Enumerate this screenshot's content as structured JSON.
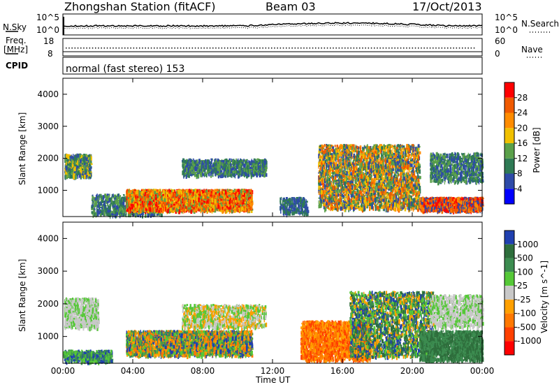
{
  "header": {
    "station": "Zhongshan Station (fitACF)",
    "beam": "Beam 03",
    "date": "17/Oct/2013",
    "mode": "normal (fast stereo) 153"
  },
  "noise_panel": {
    "left_label": "N.Sky",
    "right_label": "N.Search",
    "left_ticks": [
      "10^5",
      "10^0"
    ],
    "right_ticks": [
      "10^5",
      "10^0"
    ]
  },
  "freq_panel": {
    "left_label_1": "Freq.",
    "left_label_2": "[MHz]",
    "left_ticks": [
      "18",
      "8"
    ],
    "right_label": "Nave",
    "right_ticks": [
      "60",
      "0"
    ],
    "cpid_label": "CPID"
  },
  "colors": {
    "power": [
      "#0000ff",
      "#2e4ba8",
      "#2f7a55",
      "#5aa04a",
      "#f0c000",
      "#ff8c00",
      "#f05a00",
      "#ff0000"
    ],
    "velocity": [
      "#2040b0",
      "#2e6e3c",
      "#3c8c50",
      "#55c837",
      "#c8c8c8",
      "#ffa000",
      "#ff7800",
      "#ff4000",
      "#ff0000"
    ]
  },
  "chart_data": [
    {
      "type": "heatmap",
      "quantity": "Power",
      "ylabel": "Slant Range [km]",
      "y_ticks": [
        1000,
        2000,
        3000,
        4000
      ],
      "colorbar_label": "Power [dB]",
      "colorbar_ticks": [
        "4",
        "8",
        "12",
        "16",
        "20",
        "24",
        "28"
      ],
      "colorbar_range": [
        0,
        32
      ],
      "xlabel": "Time UT",
      "x_ticks": [
        "00:00",
        "04:00",
        "08:00",
        "12:00",
        "16:00",
        "20:00",
        "00:00"
      ]
    },
    {
      "type": "heatmap",
      "quantity": "Velocity",
      "ylabel": "Slant Range [km]",
      "y_ticks": [
        1000,
        2000,
        3000,
        4000
      ],
      "colorbar_label": "Velocity [m s^-1]",
      "colorbar_ticks": [
        "1000",
        "500",
        "100",
        "25",
        "-25",
        "-100",
        "-500",
        "-1000"
      ],
      "xlabel": "Time UT",
      "x_ticks": [
        "00:00",
        "04:00",
        "08:00",
        "12:00",
        "16:00",
        "20:00",
        "00:00"
      ]
    }
  ]
}
